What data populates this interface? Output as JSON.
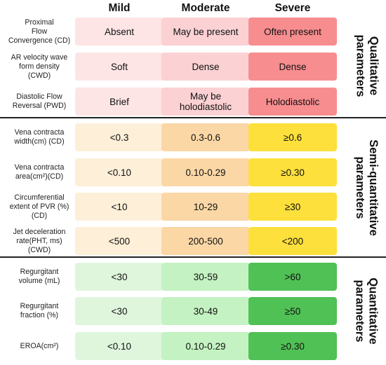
{
  "headers": [
    "Mild",
    "Moderate",
    "Severe"
  ],
  "colors": {
    "qual": [
      "#fde4e5",
      "#fbd1d3",
      "#f78d8f"
    ],
    "semi": [
      "#fdefd8",
      "#fbd7a6",
      "#fde03c"
    ],
    "quant": [
      "#dff6dd",
      "#c4f2c2",
      "#50c155"
    ]
  },
  "sections": [
    {
      "title": "Qualitative\nparameters",
      "rows": [
        {
          "label": "Proximal\nFlow\nConvergence (CD)",
          "values": [
            "Absent",
            "May be present",
            "Often present"
          ]
        },
        {
          "label": "AR velocity wave\nform density\n(CWD)",
          "values": [
            "Soft",
            "Dense",
            "Dense"
          ]
        },
        {
          "label": "Diastolic Flow\nReversal (PWD)",
          "values": [
            "Brief",
            "May be\nholodiastolic",
            "Holodiastolic"
          ]
        }
      ]
    },
    {
      "title": "Semi-quantitative\nparameters",
      "rows": [
        {
          "label": "Vena contracta\nwidth(cm) (CD)",
          "values": [
            "<0.3",
            "0.3-0.6",
            "≥0.6"
          ]
        },
        {
          "label": "Vena contracta\narea(cm²)(CD)",
          "values": [
            "<0.10",
            "0.10-0.29",
            "≥0.30"
          ]
        },
        {
          "label": "Circumferential\nextent of PVR (%)\n(CD)",
          "values": [
            "<10",
            "10-29",
            "≥30"
          ]
        },
        {
          "label": "Jet deceleration\nrate(PHT, ms)\n(CWD)",
          "values": [
            "<500",
            "200-500",
            "<200"
          ]
        }
      ]
    },
    {
      "title": "Quantitative\nparameters",
      "rows": [
        {
          "label": "Regurgitant\nvolume (mL)",
          "values": [
            "<30",
            "30-59",
            ">60"
          ]
        },
        {
          "label": "Regurgitant\nfraction (%)",
          "values": [
            "<30",
            "30-49",
            "≥50"
          ]
        },
        {
          "label": "EROA(cm²)",
          "values": [
            "<0.10",
            "0.10-0.29",
            "≥0.30"
          ]
        }
      ]
    }
  ]
}
